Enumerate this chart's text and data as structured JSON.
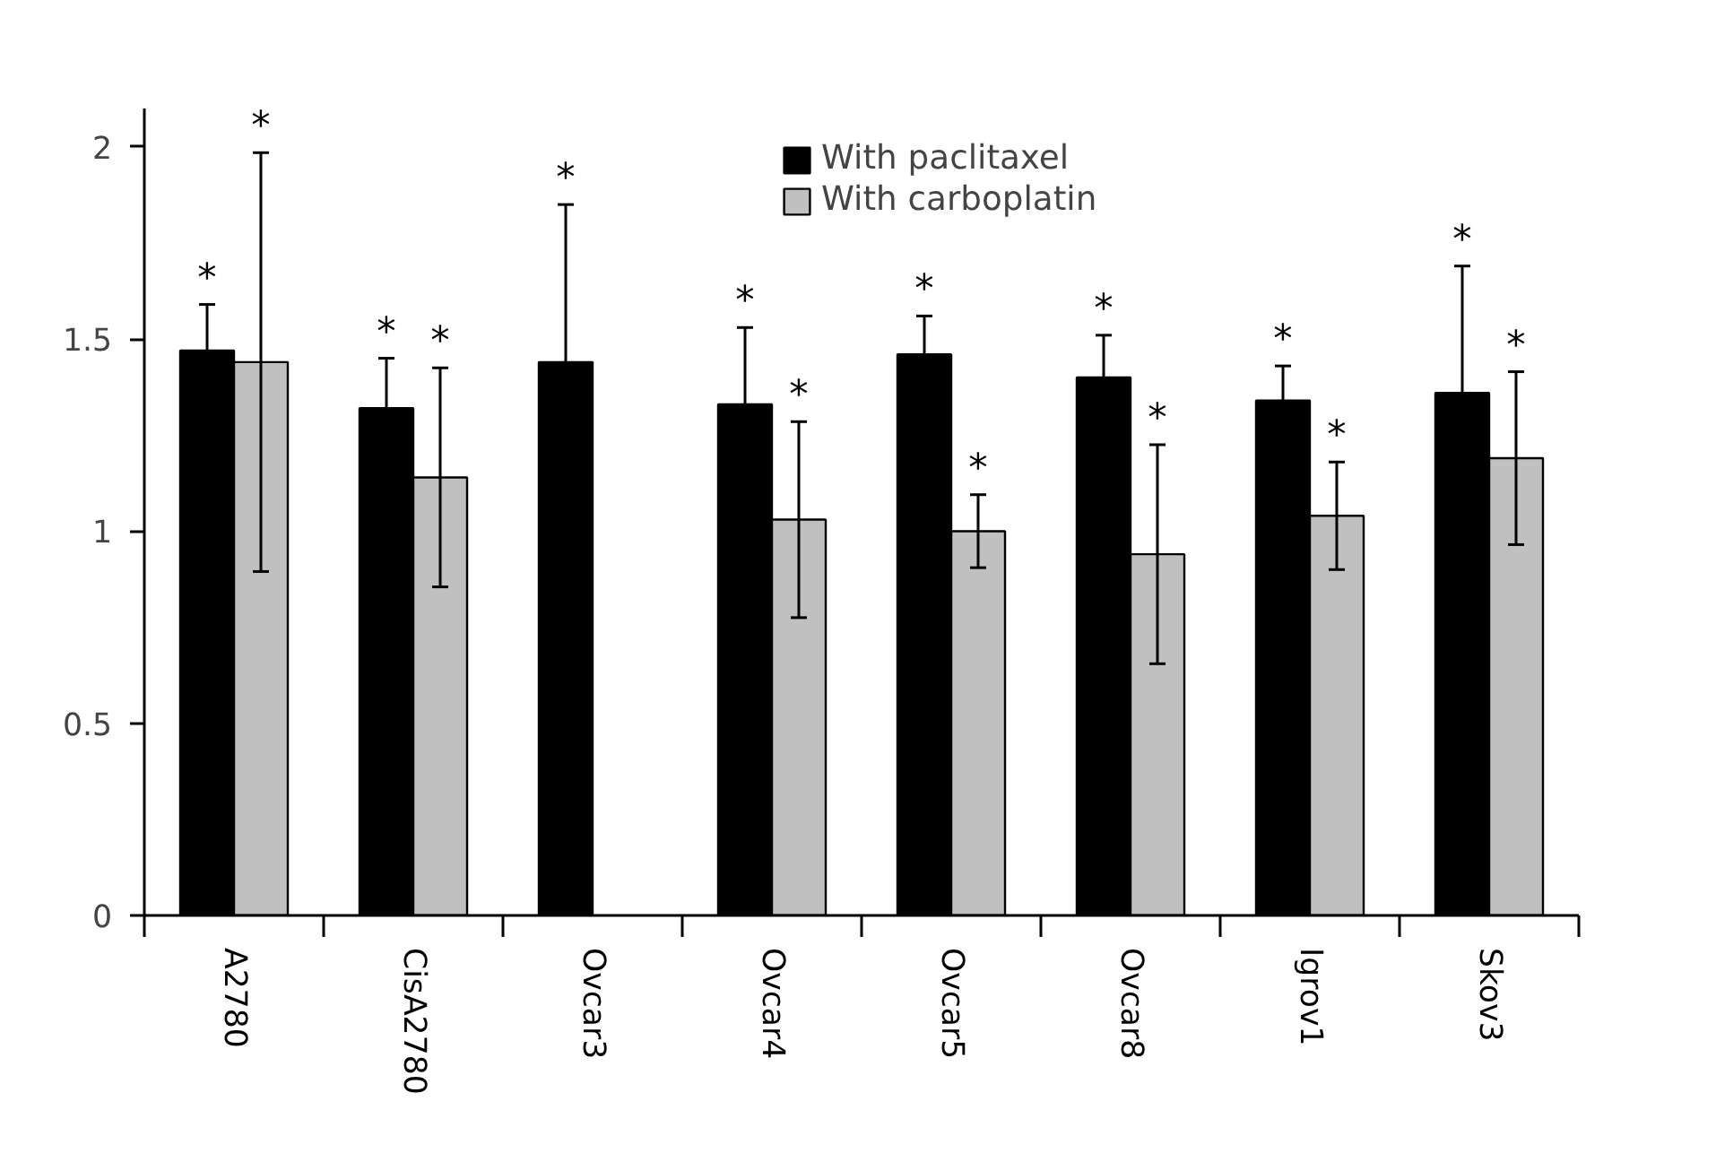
{
  "chart_data": {
    "type": "bar",
    "categories": [
      "A2780",
      "CisA2780",
      "Ovcar3",
      "Ovcar4",
      "Ovcar5",
      "Ovcar8",
      "Igrov1",
      "Skov3"
    ],
    "series": [
      {
        "name": "With paclitaxel",
        "color": "#000000",
        "values": [
          1.47,
          1.32,
          1.44,
          1.33,
          1.46,
          1.4,
          1.34,
          1.36
        ],
        "errors": [
          0.12,
          0.13,
          0.41,
          0.2,
          0.1,
          0.11,
          0.09,
          0.33
        ]
      },
      {
        "name": "With carboplatin",
        "color": "#c0c0c0",
        "values": [
          1.44,
          1.14,
          null,
          1.03,
          1.0,
          0.94,
          1.04,
          1.19
        ],
        "errors": [
          0.545,
          0.285,
          null,
          0.255,
          0.095,
          0.285,
          0.14,
          0.225
        ]
      }
    ],
    "ylim": [
      0,
      2.1
    ],
    "yticks": [
      0,
      0.5,
      1,
      1.5,
      2
    ],
    "grid": false,
    "legend": "top right",
    "annotations": [
      "*",
      "*",
      "*",
      "*",
      "*",
      "*",
      "*",
      "*",
      "*",
      "*",
      "*",
      "*",
      "*",
      "*",
      "*"
    ]
  }
}
